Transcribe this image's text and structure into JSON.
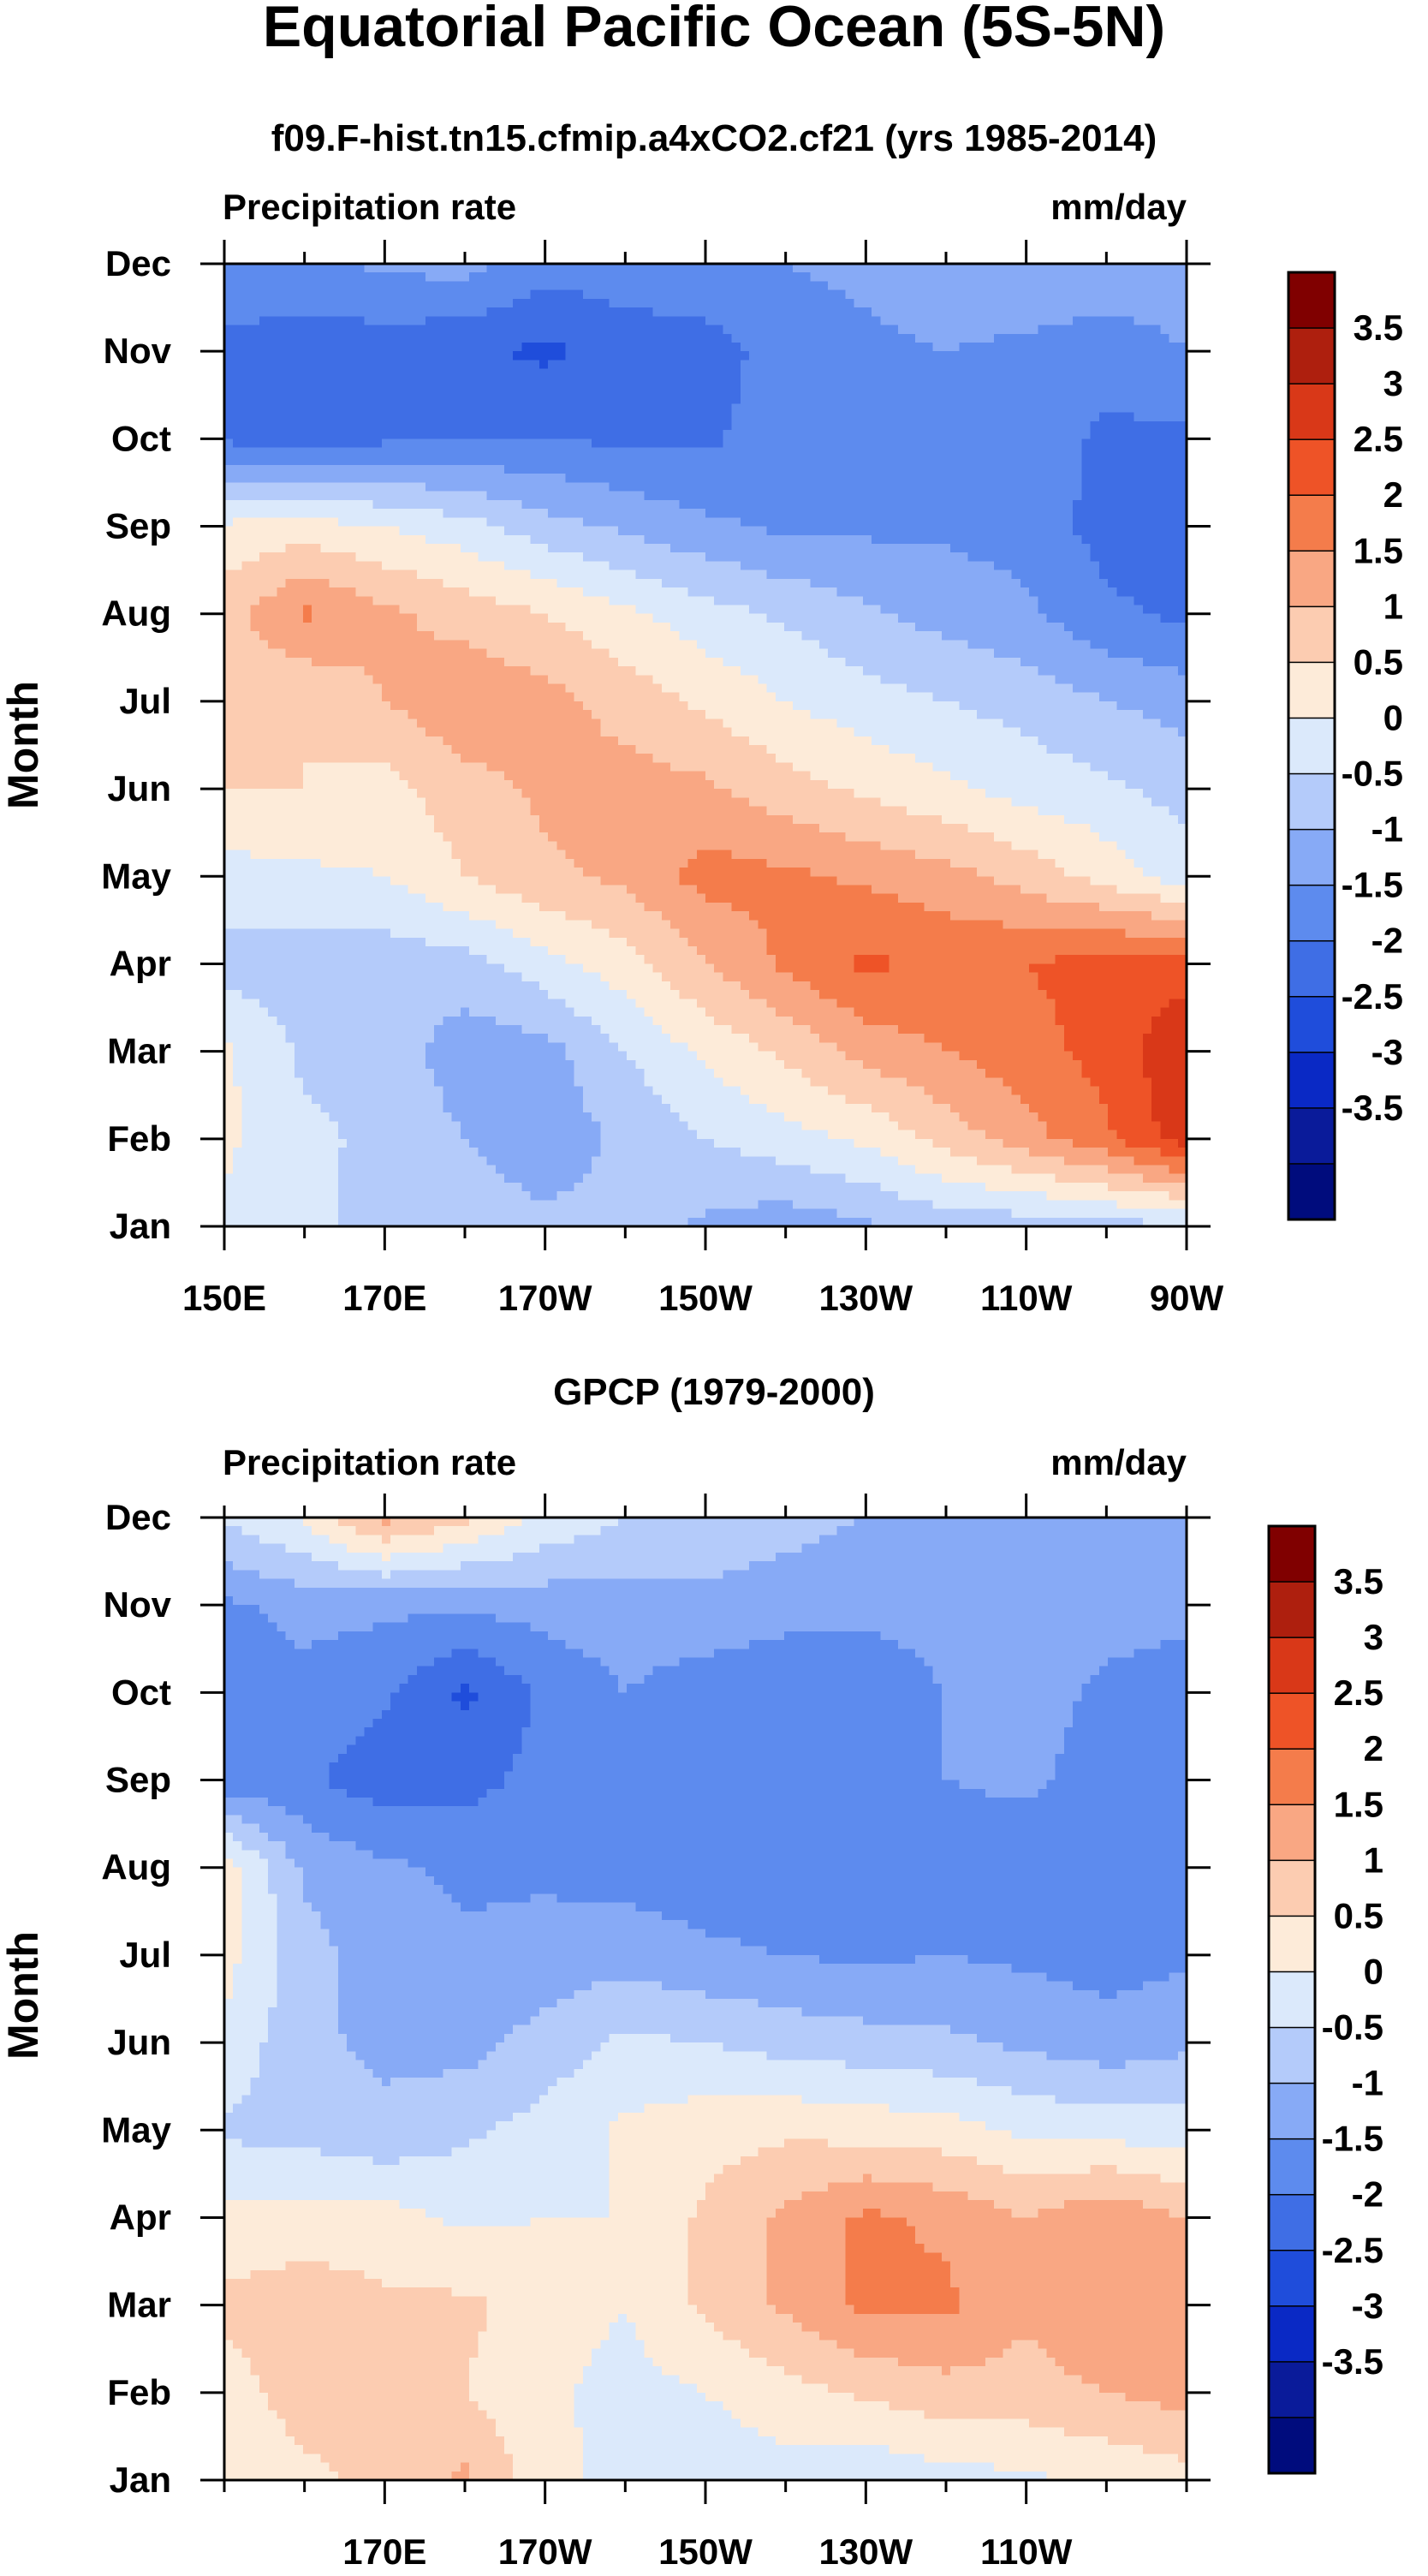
{
  "main_title": "Equatorial Pacific Ocean (5S-5N)",
  "chart_data": [
    {
      "type": "contour",
      "title": "f09.F-hist.tn15.cfmip.a4xCO2.cf21 (yrs 1985-2014)",
      "left_label": "Precipitation rate",
      "right_label": "mm/day",
      "ylabel": "Month",
      "xlabel": "",
      "xlim": [
        150,
        270
      ],
      "x_ticks": [
        150,
        170,
        190,
        210,
        230,
        250,
        270
      ],
      "x_tick_labels": [
        "150E",
        "170E",
        "170W",
        "150W",
        "130W",
        "110W",
        "90W"
      ],
      "y_tick_labels": [
        "Jan",
        "Feb",
        "Mar",
        "Apr",
        "May",
        "Jun",
        "Jul",
        "Aug",
        "Sep",
        "Oct",
        "Nov",
        "Dec"
      ],
      "x": [
        150,
        160,
        170,
        180,
        190,
        200,
        210,
        220,
        230,
        240,
        250,
        260,
        270
      ],
      "values": [
        [
          0.4,
          0.2,
          -0.3,
          -0.2,
          -0.4,
          -0.3,
          -0.6,
          -0.8,
          -0.6,
          -0.3,
          -0.3,
          -0.2,
          -0.1
        ],
        [
          0.6,
          0.1,
          -0.1,
          -0.5,
          -0.8,
          -0.4,
          0.0,
          0.3,
          0.6,
          1.2,
          1.8,
          2.4,
          3.3
        ],
        [
          0.6,
          -0.1,
          -0.2,
          -0.8,
          -0.7,
          0.0,
          0.6,
          1.1,
          1.7,
          2.0,
          2.3,
          2.7,
          3.4
        ],
        [
          -0.2,
          -0.3,
          -0.3,
          -0.2,
          0.3,
          0.8,
          1.5,
          2.1,
          2.6,
          2.4,
          2.5,
          2.7,
          2.8
        ],
        [
          0.3,
          0.4,
          0.5,
          1.0,
          1.4,
          1.6,
          2.2,
          2.1,
          1.9,
          1.7,
          1.3,
          0.8,
          0.2
        ],
        [
          1.0,
          1.0,
          0.8,
          1.3,
          1.6,
          1.7,
          1.6,
          1.2,
          0.9,
          0.6,
          0.3,
          0.1,
          -0.2
        ],
        [
          1.1,
          1.0,
          1.5,
          1.9,
          1.7,
          1.3,
          0.9,
          0.5,
          0.2,
          0.0,
          -0.2,
          -0.5,
          -0.7
        ],
        [
          1.3,
          2.1,
          1.6,
          1.3,
          1.0,
          0.6,
          0.2,
          -0.1,
          -0.4,
          -0.7,
          -0.9,
          -1.4,
          -1.6
        ],
        [
          0.6,
          0.7,
          0.5,
          0.2,
          -0.3,
          -0.6,
          -0.9,
          -1.1,
          -1.1,
          -1.1,
          -1.2,
          -1.7,
          -1.8
        ],
        [
          -1.6,
          -1.7,
          -1.6,
          -1.5,
          -1.5,
          -1.6,
          -1.6,
          -1.2,
          -1.1,
          -1.1,
          -1.2,
          -1.6,
          -1.6
        ],
        [
          -1.7,
          -1.8,
          -1.8,
          -1.9,
          -2.1,
          -1.8,
          -1.8,
          -1.2,
          -1.1,
          -1.0,
          -1.1,
          -1.3,
          -1.0
        ],
        [
          -1.0,
          -1.1,
          -0.9,
          -0.8,
          -1.3,
          -1.2,
          -1.0,
          -1.0,
          -0.9,
          -0.7,
          -0.6,
          -0.6,
          -0.7
        ]
      ],
      "levels": [
        -3.5,
        -3,
        -2.5,
        -2,
        -1.5,
        -1,
        -0.5,
        0,
        0.5,
        1,
        1.5,
        2,
        2.5,
        3,
        3.5
      ],
      "colors": [
        "#000c7d",
        "#0a1b9a",
        "#0a29c5",
        "#1f4ddb",
        "#3f6ee5",
        "#5d8bee",
        "#87aaf6",
        "#b4cbfa",
        "#dbe9fb",
        "#fdebd9",
        "#fcccb1",
        "#f9a783",
        "#f47c4b",
        "#ee5327",
        "#d93818",
        "#ae1f0e",
        "#800000"
      ],
      "colorbar_labels": [
        "3.5",
        "3",
        "2.5",
        "2",
        "1.5",
        "1",
        "0.5",
        "0",
        "-0.5",
        "-1",
        "-1.5",
        "-2",
        "-2.5",
        "-3",
        "-3.5"
      ]
    },
    {
      "type": "contour",
      "title": "GPCP (1979-2000)",
      "left_label": "Precipitation rate",
      "right_label": "mm/day",
      "ylabel": "Month",
      "xlabel": "",
      "xlim": [
        150,
        270
      ],
      "x_ticks": [
        170,
        190,
        210,
        230,
        250
      ],
      "x_tick_labels": [
        "170E",
        "170W",
        "150W",
        "130W",
        "110W"
      ],
      "y_tick_labels": [
        "Jan",
        "Feb",
        "Mar",
        "Apr",
        "May",
        "Jun",
        "Jul",
        "Aug",
        "Sep",
        "Oct",
        "Nov",
        "Dec"
      ],
      "x": [
        150,
        160,
        170,
        180,
        190,
        200,
        210,
        220,
        230,
        240,
        250,
        260,
        270
      ],
      "values": [
        [
          0.6,
          0.9,
          1.1,
          1.6,
          0.7,
          0.3,
          0.2,
          0.3,
          0.1,
          0.3,
          0.4,
          0.6,
          0.8
        ],
        [
          0.8,
          1.2,
          1.1,
          1.0,
          0.6,
          0.3,
          0.5,
          0.8,
          1.1,
          1.3,
          1.3,
          1.5,
          1.7
        ],
        [
          1.1,
          1.3,
          1.1,
          1.1,
          0.8,
          0.5,
          1.1,
          1.6,
          2.1,
          2.1,
          1.6,
          2.0,
          1.6
        ],
        [
          0.7,
          0.7,
          0.7,
          0.4,
          0.5,
          0.5,
          1.1,
          1.6,
          2.1,
          1.9,
          1.5,
          1.9,
          1.5
        ],
        [
          -0.1,
          -0.2,
          -0.4,
          -0.1,
          0.2,
          0.6,
          0.8,
          0.9,
          0.8,
          0.7,
          0.4,
          0.3,
          0.2
        ],
        [
          0.4,
          -0.4,
          -0.6,
          -0.7,
          -0.3,
          0.1,
          0.0,
          -0.2,
          -0.3,
          -0.4,
          -0.6,
          -0.8,
          -0.6
        ],
        [
          0.7,
          -0.3,
          -0.8,
          -0.9,
          -0.8,
          -0.7,
          -0.9,
          -1.0,
          -1.1,
          -1.0,
          -1.1,
          -1.2,
          -1.1
        ],
        [
          0.8,
          -0.6,
          -0.9,
          -1.1,
          -1.1,
          -1.2,
          -1.3,
          -1.4,
          -1.4,
          -1.3,
          -1.3,
          -1.5,
          -1.3
        ],
        [
          -1.3,
          -1.4,
          -1.8,
          -1.7,
          -1.3,
          -1.2,
          -1.4,
          -1.3,
          -1.2,
          -1.0,
          -0.9,
          -1.2,
          -1.4
        ],
        [
          -1.4,
          -1.2,
          -1.4,
          -2.1,
          -1.4,
          -1.0,
          -1.3,
          -1.4,
          -1.3,
          -1.0,
          -0.8,
          -1.1,
          -1.3
        ],
        [
          -1.1,
          -0.8,
          -0.9,
          -0.9,
          -0.8,
          -0.7,
          -0.6,
          -0.8,
          -0.9,
          -0.8,
          -0.7,
          -0.8,
          -0.8
        ],
        [
          0.1,
          0.6,
          1.7,
          1.1,
          0.4,
          0.0,
          -0.2,
          -0.3,
          -0.5,
          -0.6,
          -0.6,
          -0.5,
          -0.6
        ]
      ],
      "levels": [
        -3.5,
        -3,
        -2.5,
        -2,
        -1.5,
        -1,
        -0.5,
        0,
        0.5,
        1,
        1.5,
        2,
        2.5,
        3,
        3.5
      ],
      "colors": [
        "#000c7d",
        "#0a1b9a",
        "#0a29c5",
        "#1f4ddb",
        "#3f6ee5",
        "#5d8bee",
        "#87aaf6",
        "#b4cbfa",
        "#dbe9fb",
        "#fdebd9",
        "#fcccb1",
        "#f9a783",
        "#f47c4b",
        "#ee5327",
        "#d93818",
        "#ae1f0e",
        "#800000"
      ],
      "colorbar_labels": [
        "3.5",
        "3",
        "2.5",
        "2",
        "1.5",
        "1",
        "0.5",
        "0",
        "-0.5",
        "-1",
        "-1.5",
        "-2",
        "-2.5",
        "-3",
        "-3.5"
      ]
    }
  ]
}
